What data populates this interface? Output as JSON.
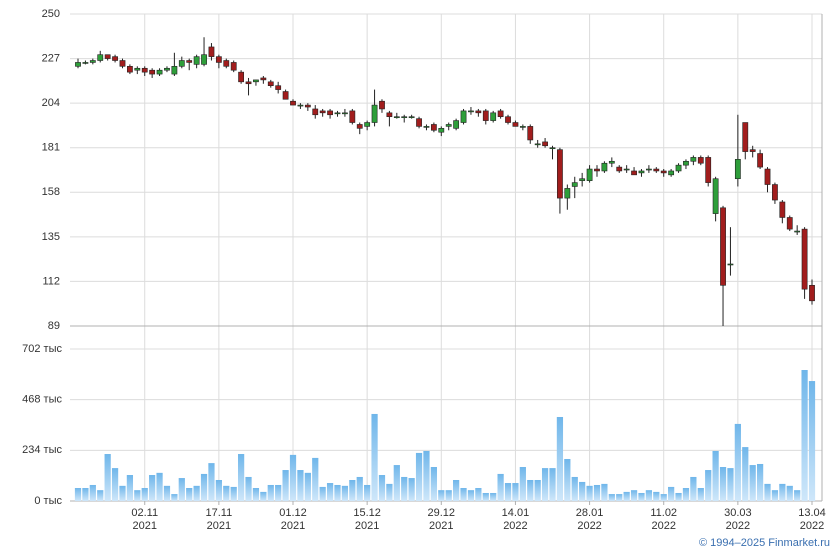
{
  "chart_data": {
    "type": "candlestick",
    "categories": [
      null,
      null,
      null,
      null,
      null,
      null,
      null,
      null,
      null,
      [
        "02.11",
        "2021"
      ],
      null,
      null,
      null,
      null,
      null,
      null,
      null,
      null,
      null,
      [
        "17.11",
        "2021"
      ],
      null,
      null,
      null,
      null,
      null,
      null,
      null,
      null,
      null,
      [
        "01.12",
        "2021"
      ],
      null,
      null,
      null,
      null,
      null,
      null,
      null,
      null,
      null,
      [
        "15.12",
        "2021"
      ],
      null,
      null,
      null,
      null,
      null,
      null,
      null,
      null,
      null,
      [
        "29.12",
        "2021"
      ],
      null,
      null,
      null,
      null,
      null,
      null,
      null,
      null,
      null,
      [
        "14.01",
        "2022"
      ],
      null,
      null,
      null,
      null,
      null,
      null,
      null,
      null,
      null,
      [
        "28.01",
        "2022"
      ],
      null,
      null,
      null,
      null,
      null,
      null,
      null,
      null,
      null,
      [
        "11.02",
        "2022"
      ],
      null,
      null,
      null,
      null,
      null,
      null,
      null,
      null,
      null,
      [
        "30.03",
        "2022"
      ],
      null,
      null,
      null,
      null,
      null,
      null,
      null,
      null,
      null,
      [
        "13.04",
        "2022"
      ]
    ],
    "open": [
      223,
      225,
      225,
      226,
      229,
      228,
      226,
      223,
      221,
      222,
      221,
      219,
      221,
      219,
      223,
      226,
      224,
      224,
      233,
      228,
      226,
      225,
      220,
      215,
      215,
      217,
      215,
      213,
      210,
      205,
      203,
      203,
      201,
      200,
      200,
      199,
      199,
      200,
      193,
      192,
      194,
      205,
      199,
      197,
      197,
      197,
      196,
      192,
      193,
      189,
      192,
      191,
      194,
      200,
      200,
      200,
      195,
      200,
      197,
      194,
      192,
      192,
      183,
      184,
      181,
      180,
      155,
      161,
      164,
      164,
      170,
      169,
      173,
      171,
      170,
      169,
      168,
      170,
      170,
      169,
      167,
      169,
      172,
      174,
      176,
      176,
      147,
      150,
      121,
      165,
      194,
      180,
      178,
      170,
      162,
      153,
      145,
      138,
      139,
      110
    ],
    "high": [
      227,
      226,
      227,
      231,
      229,
      229,
      227,
      224,
      223,
      223,
      222,
      222,
      223,
      230,
      228,
      227,
      229,
      238,
      235,
      229,
      227,
      226,
      221,
      217,
      216,
      218,
      216,
      215,
      211,
      206,
      204,
      204,
      203,
      201,
      201,
      200,
      201,
      201,
      194,
      195,
      211,
      206,
      200,
      199,
      198,
      198,
      197,
      193,
      194,
      192,
      194,
      196,
      201,
      202,
      201,
      201,
      200,
      201,
      198,
      195,
      193,
      193,
      185,
      186,
      182,
      181,
      162,
      166,
      168,
      172,
      172,
      174,
      176,
      172,
      172,
      171,
      170,
      172,
      171,
      170,
      170,
      173,
      175,
      177,
      177,
      177,
      166,
      151,
      140,
      198,
      194,
      182,
      180,
      171,
      163,
      154,
      146,
      141,
      140,
      113
    ],
    "low": [
      222,
      224,
      224,
      225,
      226,
      225,
      222,
      219,
      219,
      218,
      217,
      218,
      220,
      218,
      222,
      221,
      222,
      223,
      226,
      222,
      222,
      220,
      214,
      208,
      213,
      214,
      212,
      209,
      206,
      203,
      201,
      200,
      196,
      197,
      196,
      197,
      197,
      193,
      188,
      190,
      192,
      199,
      192,
      196,
      194,
      196,
      191,
      190,
      189,
      187,
      190,
      190,
      193,
      198,
      197,
      193,
      194,
      196,
      193,
      192,
      190,
      183,
      181,
      181,
      175,
      147,
      149,
      155,
      161,
      163,
      166,
      168,
      171,
      168,
      168,
      167,
      166,
      168,
      168,
      166,
      166,
      168,
      170,
      172,
      172,
      161,
      143,
      89,
      115,
      161,
      175,
      176,
      170,
      158,
      152,
      142,
      138,
      136,
      103,
      100
    ],
    "close": [
      225,
      225,
      226,
      229,
      227,
      226,
      223,
      220,
      222,
      220,
      219,
      221,
      222,
      223,
      226,
      225,
      228,
      229,
      228,
      225,
      223,
      221,
      215,
      214,
      216,
      216,
      213,
      211,
      206,
      203,
      203,
      202,
      198,
      199,
      198,
      199,
      199,
      194,
      191,
      194,
      203,
      201,
      197,
      197,
      197,
      197,
      192,
      192,
      190,
      191,
      193,
      195,
      200,
      200,
      199,
      195,
      199,
      197,
      194,
      192,
      192,
      185,
      183,
      182,
      181,
      155,
      160,
      163,
      165,
      170,
      169,
      173,
      174,
      169,
      170,
      167,
      169,
      170,
      169,
      168,
      169,
      172,
      174,
      176,
      173,
      163,
      165,
      110,
      121,
      175,
      179,
      179,
      171,
      162,
      154,
      145,
      139,
      138,
      108,
      102
    ],
    "up_color": "#2e9e3a",
    "down_color": "#a11d1d",
    "ylim": [
      89,
      250
    ],
    "yticks": [
      89,
      112,
      135,
      158,
      181,
      204,
      227,
      250
    ],
    "grid": true,
    "volume": {
      "color": "#7fbfee",
      "values": [
        60,
        60,
        74,
        50,
        217,
        152,
        70,
        120,
        50,
        60,
        120,
        130,
        70,
        32,
        106,
        60,
        70,
        125,
        175,
        97,
        70,
        65,
        217,
        111,
        60,
        42,
        74,
        74,
        143,
        213,
        143,
        130,
        199,
        65,
        83,
        74,
        70,
        97,
        111,
        74,
        402,
        120,
        79,
        166,
        111,
        106,
        222,
        231,
        157,
        50,
        50,
        97,
        60,
        50,
        60,
        37,
        37,
        125,
        83,
        83,
        157,
        97,
        97,
        152,
        152,
        388,
        194,
        111,
        88,
        70,
        74,
        79,
        32,
        32,
        42,
        50,
        37,
        50,
        42,
        32,
        65,
        37,
        60,
        111,
        60,
        143,
        231,
        157,
        152,
        356,
        249,
        166,
        171,
        79,
        50,
        79,
        70,
        50,
        605,
        554
      ],
      "ylim": [
        0,
        702
      ],
      "yticks": [
        {
          "value": 0,
          "label": "0 тыс"
        },
        {
          "value": 234,
          "label": "234 тыс"
        },
        {
          "value": 468,
          "label": "468 тыс"
        },
        {
          "value": 702,
          "label": "702 тыс"
        }
      ]
    }
  },
  "footer": "© 1994–2025 Finmarket.ru"
}
